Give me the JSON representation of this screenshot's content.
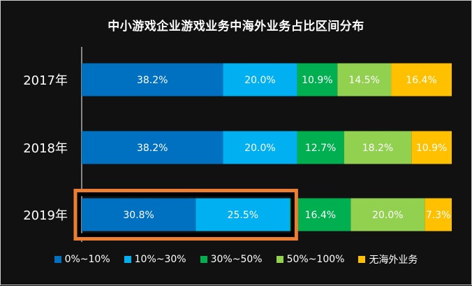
{
  "chart_data": {
    "type": "bar",
    "orientation": "horizontal",
    "stacked": true,
    "percent": true,
    "title": "中小游戏企业游戏业务中海外业务占比区间分布",
    "categories": [
      "2017年",
      "2018年",
      "2019年"
    ],
    "series": [
      {
        "name": "0%~10%",
        "color": "#0070C0",
        "values": [
          38.2,
          38.2,
          30.8
        ],
        "labels": [
          "38.2%",
          "38.2%",
          "30.8%"
        ]
      },
      {
        "name": "10%~30%",
        "color": "#00B0F0",
        "values": [
          20.0,
          20.0,
          25.5
        ],
        "labels": [
          "20.0%",
          "20.0%",
          "25.5%"
        ]
      },
      {
        "name": "30%~50%",
        "color": "#00B050",
        "values": [
          10.9,
          12.7,
          16.4
        ],
        "labels": [
          "10.9%",
          "12.7%",
          "16.4%"
        ]
      },
      {
        "name": "50%~100%",
        "color": "#92D050",
        "values": [
          14.5,
          18.2,
          20.0
        ],
        "labels": [
          "14.5%",
          "18.2%",
          "20.0%"
        ]
      },
      {
        "name": "无海外业务",
        "color": "#FFC000",
        "values": [
          16.4,
          10.9,
          7.3
        ],
        "labels": [
          "16.4%",
          "10.9%",
          "7.3%"
        ]
      }
    ],
    "highlight": {
      "category": "2019年",
      "series": [
        "0%~10%",
        "10%~30%"
      ],
      "color": "#ED7D31"
    },
    "legend": "bottom",
    "grid": false
  }
}
